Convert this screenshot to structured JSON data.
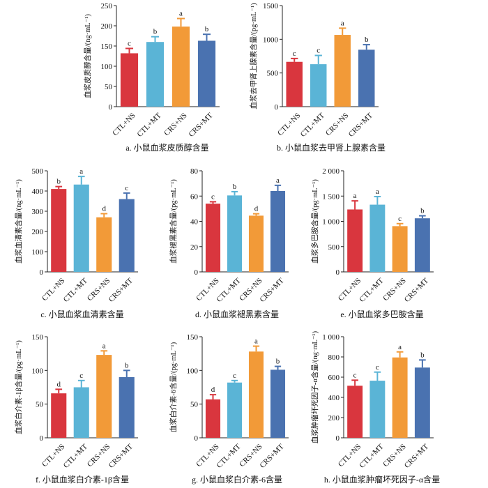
{
  "chart_data": [
    {
      "type": "bar",
      "title": "a. 小鼠血浆皮质醇含量",
      "ylabel": "血浆皮质醇含量/(ng·mL⁻¹)",
      "ylim": [
        0,
        250
      ],
      "yticks": [
        "0",
        "50",
        "100",
        "150",
        "200",
        "250"
      ],
      "categories": [
        "CTL+NS",
        "CTL+MT",
        "CRS+NS",
        "CRS+MT"
      ],
      "values": [
        132,
        160,
        198,
        163
      ],
      "errors": [
        12,
        13,
        20,
        16
      ],
      "labels": [
        "c",
        "b",
        "a",
        "b"
      ],
      "colors": [
        "#d9363e",
        "#5ab4d6",
        "#f29a38",
        "#4a72b0"
      ]
    },
    {
      "type": "bar",
      "title": "b. 小鼠血浆去甲肾上腺素含量",
      "ylabel": "血浆去甲肾上腺素含量/(pg·mL⁻¹)",
      "ylim": [
        0,
        1500
      ],
      "yticks": [
        "0",
        "500",
        "1000",
        "1500"
      ],
      "categories": [
        "CTL+NS",
        "CTL+MT",
        "CRS+NS",
        "CRS+MT"
      ],
      "values": [
        665,
        630,
        1065,
        845
      ],
      "errors": [
        50,
        130,
        100,
        75
      ],
      "labels": [
        "c",
        "c",
        "a",
        "b"
      ],
      "colors": [
        "#d9363e",
        "#5ab4d6",
        "#f29a38",
        "#4a72b0"
      ]
    },
    {
      "type": "bar",
      "title": "c. 小鼠血浆血清素含量",
      "ylabel": "血浆血清素含量/(ng·mL⁻¹)",
      "ylim": [
        0,
        500
      ],
      "yticks": [
        "0",
        "100",
        "200",
        "300",
        "400",
        "500"
      ],
      "categories": [
        "CTL+NS",
        "CTL+MT",
        "CRS+NS",
        "CRS+MT"
      ],
      "values": [
        410,
        432,
        270,
        360
      ],
      "errors": [
        12,
        40,
        18,
        30
      ],
      "labels": [
        "b",
        "a",
        "d",
        "c"
      ],
      "colors": [
        "#d9363e",
        "#5ab4d6",
        "#f29a38",
        "#4a72b0"
      ]
    },
    {
      "type": "bar",
      "title": "d. 小鼠血浆褪黑素含量",
      "ylabel": "血浆褪黑素含量/(pg·mL⁻¹)",
      "ylim": [
        0,
        80
      ],
      "yticks": [
        "0",
        "20",
        "40",
        "60",
        "80"
      ],
      "categories": [
        "CTL+NS",
        "CTL+MT",
        "CRS+NS",
        "CRS+MT"
      ],
      "values": [
        54,
        60.5,
        44.5,
        64
      ],
      "errors": [
        1.5,
        3,
        1.5,
        4.5
      ],
      "labels": [
        "c",
        "b",
        "d",
        "a"
      ],
      "colors": [
        "#d9363e",
        "#5ab4d6",
        "#f29a38",
        "#4a72b0"
      ]
    },
    {
      "type": "bar",
      "title": "e. 小鼠血浆多巴胺含量",
      "ylabel": "血浆多巴胺含量/(pg·mL⁻¹)",
      "ylim": [
        0,
        2000
      ],
      "yticks": [
        "0",
        "500",
        "1 000",
        "1 500",
        "2 000"
      ],
      "categories": [
        "CTL+NS",
        "CTL+MT",
        "CRS+NS",
        "CRS+MT"
      ],
      "values": [
        1235,
        1330,
        905,
        1060
      ],
      "errors": [
        170,
        160,
        50,
        50
      ],
      "labels": [
        "a",
        "a",
        "c",
        "b"
      ],
      "colors": [
        "#d9363e",
        "#5ab4d6",
        "#f29a38",
        "#4a72b0"
      ]
    },
    {
      "type": "bar",
      "title": "f. 小鼠血浆白介素-1β含量",
      "ylabel": "血浆白介素-1β含量/(pg·mL⁻¹)",
      "ylim": [
        0,
        150
      ],
      "yticks": [
        "0",
        "50",
        "100",
        "150"
      ],
      "categories": [
        "CTL+NS",
        "CTL+MT",
        "CRS+NS",
        "CRS+MT"
      ],
      "values": [
        66,
        75,
        123,
        90
      ],
      "errors": [
        6,
        10,
        6,
        10
      ],
      "labels": [
        "d",
        "c",
        "a",
        "b"
      ],
      "colors": [
        "#d9363e",
        "#5ab4d6",
        "#f29a38",
        "#4a72b0"
      ]
    },
    {
      "type": "bar",
      "title": "g. 小鼠血浆白介素-6含量",
      "ylabel": "血浆白介素-6含量/(pg·mL⁻¹)",
      "ylim": [
        0,
        150
      ],
      "yticks": [
        "0",
        "50",
        "100",
        "150"
      ],
      "categories": [
        "CTL+NS",
        "CTL+MT",
        "CRS+NS",
        "CRS+MT"
      ],
      "values": [
        57,
        82,
        128,
        101
      ],
      "errors": [
        7,
        3,
        8,
        5
      ],
      "labels": [
        "d",
        "c",
        "a",
        "b"
      ],
      "colors": [
        "#d9363e",
        "#5ab4d6",
        "#f29a38",
        "#4a72b0"
      ]
    },
    {
      "type": "bar",
      "title": "h. 小鼠血浆肿瘤坏死因子-α含量",
      "ylabel": "血浆肿瘤坏死因子-α含量/(ng·mL⁻¹)",
      "ylim": [
        0,
        1000
      ],
      "yticks": [
        "0",
        "200",
        "400",
        "600",
        "800",
        "1 000"
      ],
      "categories": [
        "CTL+NS",
        "CTL+MT",
        "CRS+NS",
        "CRS+MT"
      ],
      "values": [
        515,
        565,
        795,
        695
      ],
      "errors": [
        55,
        85,
        55,
        75
      ],
      "labels": [
        "c",
        "c",
        "a",
        "b"
      ],
      "colors": [
        "#d9363e",
        "#5ab4d6",
        "#f29a38",
        "#4a72b0"
      ]
    }
  ]
}
